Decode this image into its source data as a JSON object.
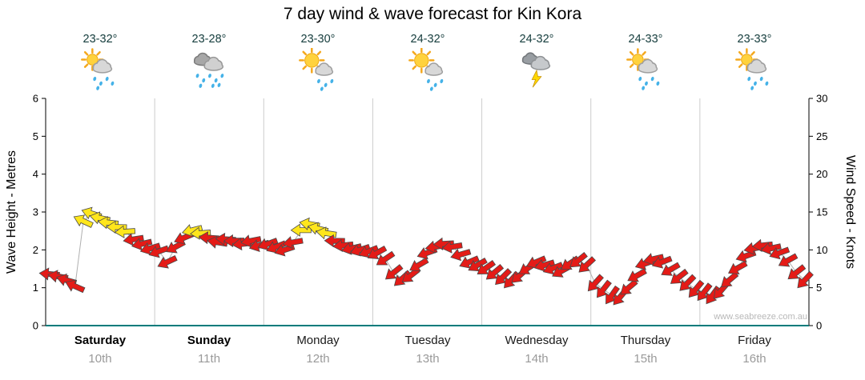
{
  "title": "7 day wind & wave forecast for Kin Kora",
  "watermark": "www.seabreeze.com.au",
  "days": [
    {
      "name": "Saturday",
      "date": "10th",
      "temp": "23-32°",
      "icon": "sun-cloud-rain",
      "weekend": true
    },
    {
      "name": "Sunday",
      "date": "11th",
      "temp": "23-28°",
      "icon": "rain",
      "weekend": true
    },
    {
      "name": "Monday",
      "date": "12th",
      "temp": "23-30°",
      "icon": "sun-rain",
      "weekend": false
    },
    {
      "name": "Tuesday",
      "date": "13th",
      "temp": "24-32°",
      "icon": "sun-rain",
      "weekend": false
    },
    {
      "name": "Wednesday",
      "date": "14th",
      "temp": "24-32°",
      "icon": "storm",
      "weekend": false
    },
    {
      "name": "Thursday",
      "date": "15th",
      "temp": "24-33°",
      "icon": "sun-cloud-rain",
      "weekend": false
    },
    {
      "name": "Friday",
      "date": "16th",
      "temp": "23-33°",
      "icon": "sun-cloud-rain",
      "weekend": false
    }
  ],
  "chart_data": {
    "type": "scatter",
    "style": "wind-direction-arrows",
    "title": "7 day wind & wave forecast for Kin Kora",
    "x_categories": [
      "Saturday 10th",
      "Sunday 11th",
      "Monday 12th",
      "Tuesday 13th",
      "Wednesday 14th",
      "Thursday 15th",
      "Friday 16th"
    ],
    "axes": {
      "left": {
        "label": "Wave Height - Metres",
        "min": 0,
        "max": 6,
        "ticks": [
          0,
          1,
          2,
          3,
          4,
          5,
          6
        ]
      },
      "right": {
        "label": "Wind Speed - Knots",
        "min": 0,
        "max": 30,
        "ticks": [
          0,
          5,
          10,
          15,
          20,
          25,
          30
        ]
      }
    },
    "grid": {
      "vertical_day_separators": true,
      "horizontal": false
    },
    "legend": "none",
    "arrow_rule": {
      "yellow_min_knots": 12,
      "description": "arrows coloured yellow at 12+ knots, red below 12 knots"
    },
    "colors": {
      "red": "#e41b17",
      "yellow": "#ffe61c",
      "baseline": "#007b7b",
      "gridline": "#cccccc",
      "trend_line": "#b0b0b0"
    },
    "series": [
      {
        "name": "Wind speed (knots) & direction",
        "points_per_day": 13,
        "point_format": "[knots, arrow_rotation_deg (0=east, clockwise)]",
        "points_by_day": [
          [
            [
              6.8,
              185
            ],
            [
              6.5,
              190
            ],
            [
              6.0,
              196
            ],
            [
              5.2,
              204
            ],
            [
              13.8,
              205
            ],
            [
              14.8,
              198
            ],
            [
              14.2,
              192
            ],
            [
              13.6,
              186
            ],
            [
              13.0,
              181
            ],
            [
              12.4,
              176
            ],
            [
              11.4,
              171
            ],
            [
              10.8,
              167
            ],
            [
              10.2,
              163
            ]
          ],
          [
            [
              9.8,
              160
            ],
            [
              8.4,
              155
            ],
            [
              10.4,
              152
            ],
            [
              11.6,
              157
            ],
            [
              12.6,
              166
            ],
            [
              12.2,
              176
            ],
            [
              11.6,
              184
            ],
            [
              11.0,
              189
            ],
            [
              11.4,
              184
            ],
            [
              11.2,
              179
            ],
            [
              10.8,
              174
            ],
            [
              11.2,
              169
            ],
            [
              10.6,
              164
            ]
          ],
          [
            [
              10.8,
              160
            ],
            [
              10.4,
              158
            ],
            [
              10.0,
              162
            ],
            [
              11.0,
              170
            ],
            [
              12.6,
              180
            ],
            [
              13.4,
              190
            ],
            [
              12.8,
              194
            ],
            [
              12.2,
              189
            ],
            [
              11.2,
              181
            ],
            [
              10.6,
              174
            ],
            [
              10.2,
              167
            ],
            [
              10.0,
              162
            ],
            [
              9.8,
              158
            ]
          ],
          [
            [
              9.6,
              151
            ],
            [
              8.8,
              146
            ],
            [
              7.0,
              141
            ],
            [
              6.2,
              138
            ],
            [
              6.6,
              142
            ],
            [
              8.0,
              150
            ],
            [
              9.6,
              160
            ],
            [
              10.4,
              170
            ],
            [
              10.8,
              177
            ],
            [
              10.4,
              171
            ],
            [
              9.4,
              164
            ],
            [
              8.4,
              157
            ],
            [
              8.0,
              150
            ]
          ],
          [
            [
              7.6,
              145
            ],
            [
              7.0,
              140
            ],
            [
              6.4,
              135
            ],
            [
              6.0,
              132
            ],
            [
              6.6,
              138
            ],
            [
              7.6,
              148
            ],
            [
              8.4,
              157
            ],
            [
              8.0,
              164
            ],
            [
              7.6,
              159
            ],
            [
              7.2,
              151
            ],
            [
              8.2,
              146
            ],
            [
              8.6,
              141
            ],
            [
              8.0,
              137
            ]
          ],
          [
            [
              5.6,
              132
            ],
            [
              4.8,
              128
            ],
            [
              4.0,
              125
            ],
            [
              3.8,
              130
            ],
            [
              5.0,
              140
            ],
            [
              6.6,
              151
            ],
            [
              8.2,
              161
            ],
            [
              8.8,
              167
            ],
            [
              8.4,
              159
            ],
            [
              7.4,
              150
            ],
            [
              6.4,
              142
            ],
            [
              5.6,
              135
            ],
            [
              4.8,
              130
            ]
          ],
          [
            [
              4.4,
              128
            ],
            [
              4.0,
              126
            ],
            [
              4.6,
              131
            ],
            [
              6.0,
              140
            ],
            [
              7.6,
              151
            ],
            [
              9.2,
              161
            ],
            [
              10.2,
              169
            ],
            [
              10.6,
              174
            ],
            [
              10.2,
              168
            ],
            [
              9.6,
              160
            ],
            [
              8.6,
              151
            ],
            [
              7.0,
              142
            ],
            [
              6.0,
              133
            ]
          ]
        ]
      }
    ]
  }
}
